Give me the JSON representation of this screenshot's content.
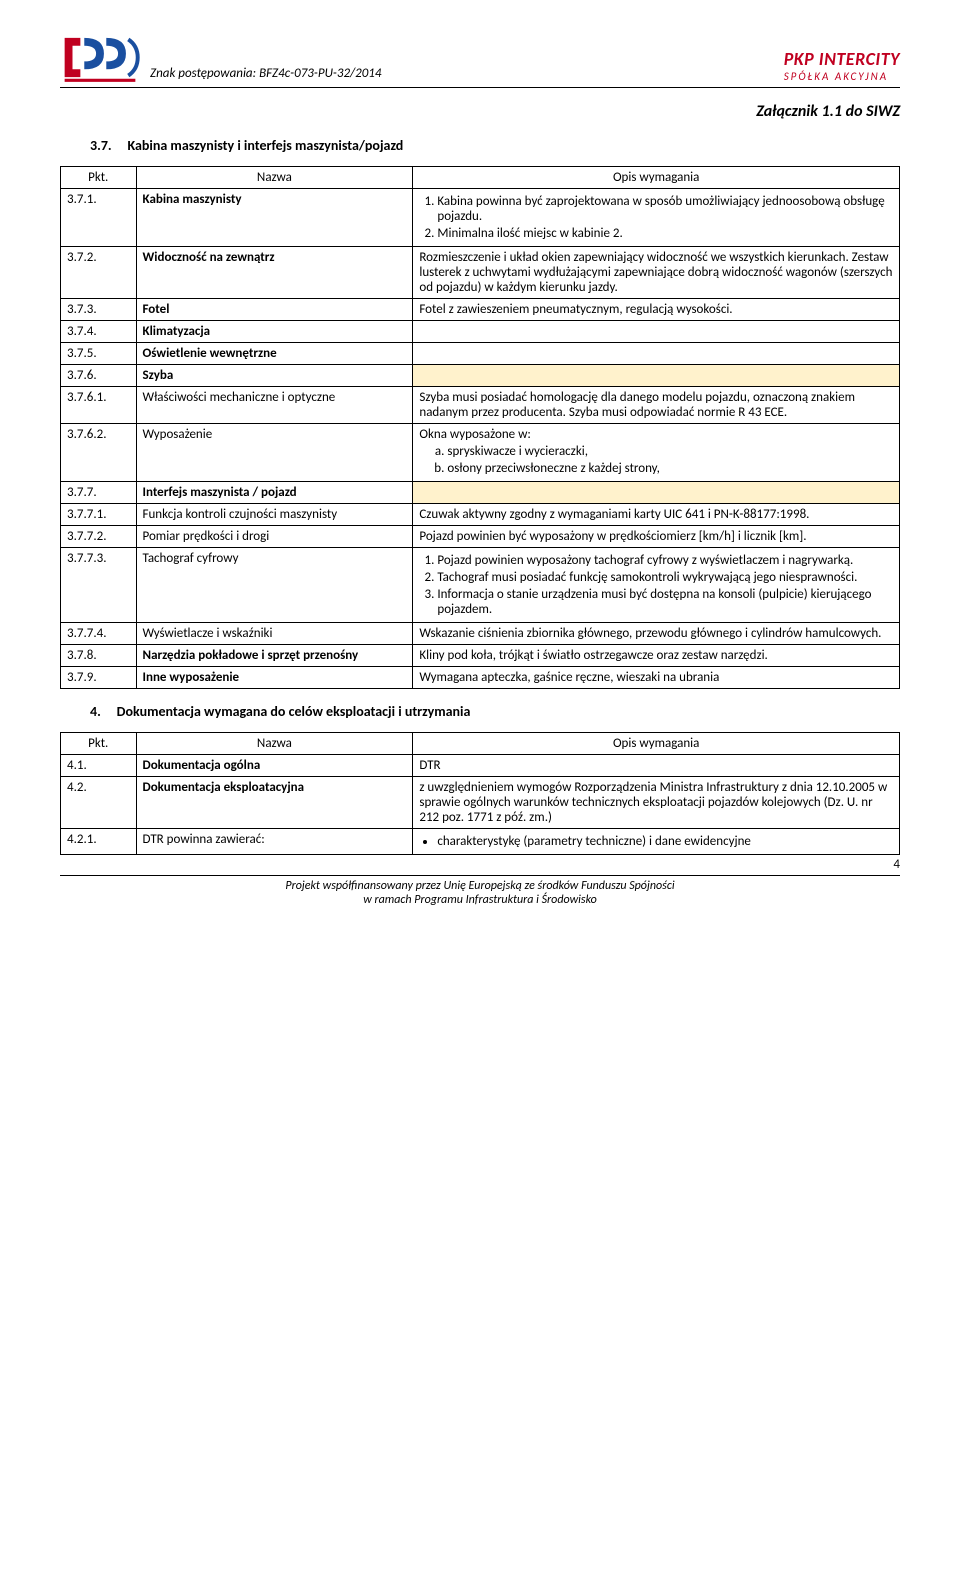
{
  "header": {
    "znak_label": "Znak postępowania:",
    "znak_value": "BFZ4c-073-PU-32/2014",
    "brand": "PKP INTERCITY",
    "company_type": "SPÓŁKA  AKCYJNA"
  },
  "attachment_title": "Załącznik 1.1 do  SIWZ",
  "section_37": {
    "number": "3.7.",
    "title": "Kabina maszynisty i interfejs maszynista/pojazd"
  },
  "table_header": {
    "c1": "Pkt.",
    "c2": "Nazwa",
    "c3": "Opis wymagania"
  },
  "rows_37": [
    {
      "pkt": "3.7.1.",
      "nazwa": "Kabina maszynisty",
      "nazwa_bold": true,
      "desc_type": "ol",
      "items": [
        "Kabina powinna być zaprojektowana w sposób umożliwiający jednoosobową obsługę pojazdu.",
        "Minimalna ilość miejsc w kabinie 2."
      ]
    },
    {
      "pkt": "3.7.2.",
      "nazwa": "Widoczność na zewnątrz",
      "nazwa_bold": true,
      "desc": "Rozmieszczenie i układ okien zapewniający  widoczność we wszystkich kierunkach. Zestaw lusterek  z uchwytami wydłużającymi zapewniające dobrą widoczność wagonów (szerszych od pojazdu) w każdym kierunku jazdy."
    },
    {
      "pkt": "3.7.3.",
      "nazwa": "Fotel",
      "nazwa_bold": true,
      "desc": "Fotel z zawieszeniem pneumatycznym, regulacją wysokości."
    },
    {
      "pkt": "3.7.4.",
      "nazwa": "Klimatyzacja",
      "nazwa_bold": true,
      "desc": ""
    },
    {
      "pkt": "3.7.5.",
      "nazwa": "Oświetlenie wewnętrzne",
      "nazwa_bold": true,
      "desc": ""
    },
    {
      "pkt": "3.7.6.",
      "nazwa": "Szyba",
      "nazwa_bold": true,
      "shaded": true,
      "desc": ""
    },
    {
      "pkt": "3.7.6.1.",
      "nazwa": "Właściwości mechaniczne i optyczne",
      "desc": "Szyba  musi posiadać homologację dla danego modelu pojazdu, oznaczoną znakiem nadanym przez producenta. Szyba musi odpowiadać normie R 43 ECE."
    },
    {
      "pkt": "3.7.6.2.",
      "nazwa": "Wyposażenie",
      "desc_type": "wypo",
      "lead": "Okna wyposażone w:",
      "items": [
        "spryskiwacze i wycieraczki,",
        "osłony przeciwsłoneczne z każdej strony,"
      ]
    },
    {
      "pkt": "3.7.7.",
      "nazwa": "Interfejs maszynista / pojazd",
      "nazwa_bold": true,
      "shaded": true,
      "desc": ""
    },
    {
      "pkt": "3.7.7.1.",
      "nazwa": "Funkcja kontroli czujności maszynisty",
      "desc": "Czuwak aktywny zgodny z wymaganiami karty UIC 641 i PN-K-88177:1998."
    },
    {
      "pkt": "3.7.7.2.",
      "nazwa": "Pomiar prędkości i drogi",
      "desc": "Pojazd powinien być wyposażony w prędkościomierz [km/h] i licznik [km]."
    },
    {
      "pkt": "3.7.7.3.",
      "nazwa": "Tachograf cyfrowy",
      "desc_type": "ol",
      "items": [
        "Pojazd powinien wyposażony tachograf cyfrowy z wyświetlaczem i nagrywarką.",
        "Tachograf musi posiadać funkcję samokontroli wykrywającą jego niesprawności.",
        "Informacja o stanie urządzenia musi być dostępna na konsoli (pulpicie) kierującego pojazdem."
      ]
    },
    {
      "pkt": "3.7.7.4.",
      "nazwa": "Wyświetlacze i wskaźniki",
      "desc": "Wskazanie ciśnienia zbiornika głównego, przewodu głównego i cylindrów hamulcowych."
    },
    {
      "pkt": "3.7.8.",
      "nazwa": "Narzędzia pokładowe i sprzęt przenośny",
      "nazwa_bold": true,
      "desc": "Kliny pod koła, trójkąt i światło ostrzegawcze oraz zestaw narzędzi."
    },
    {
      "pkt": "3.7.9.",
      "nazwa": "Inne wyposażenie",
      "nazwa_bold": true,
      "desc": "Wymagana apteczka, gaśnice ręczne, wieszaki na ubrania"
    }
  ],
  "section_4": {
    "number": "4.",
    "title": "Dokumentacja wymagana do celów eksploatacji i utrzymania"
  },
  "rows_4": [
    {
      "pkt": "4.1.",
      "nazwa": "Dokumentacja ogólna",
      "nazwa_bold": true,
      "desc": "DTR"
    },
    {
      "pkt": "4.2.",
      "nazwa": "Dokumentacja eksploatacyjna",
      "nazwa_bold": true,
      "desc": "z uwzględnieniem wymogów Rozporządzenia Ministra Infrastruktury z dnia 12.10.2005 w sprawie ogólnych warunków technicznych eksploatacji pojazdów kolejowych (Dz. U. nr 212 poz. 1771 z póź. zm.)"
    },
    {
      "pkt": "4.2.1.",
      "nazwa": "DTR powinna zawierać:",
      "desc_type": "bullets",
      "items": [
        "charakterystykę (parametry techniczne) i dane ewidencyjne"
      ]
    }
  ],
  "footer": {
    "line1": "Projekt współfinansowany przez Unię Europejską ze środków Funduszu Spójności",
    "line2": "w ramach Programu Infrastruktura i Środowisko",
    "page": "4"
  }
}
